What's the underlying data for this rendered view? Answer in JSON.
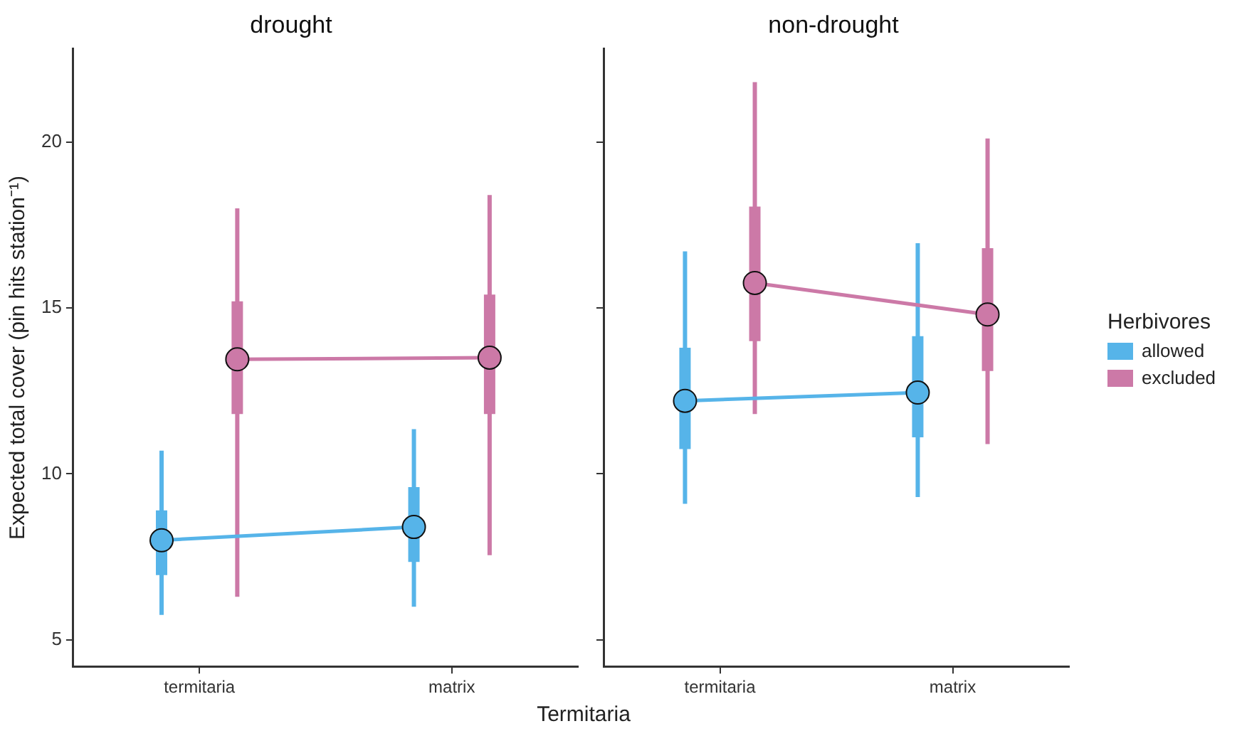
{
  "chart_data": [
    {
      "type": "box",
      "title": "drought",
      "ylabel": "Expected total cover (pin hits station⁻¹)",
      "xlabel": "Termitaria",
      "categories": [
        "termitaria",
        "matrix"
      ],
      "ylim": [
        4.2,
        22.8
      ],
      "yticks": [
        5,
        10,
        15,
        20
      ],
      "grid": false,
      "legend": false,
      "marker": "circle",
      "series": [
        {
          "color": "#56b4e9",
          "boxes": [
            {
              "low": 5.75,
              "q1": 6.95,
              "median": 8.0,
              "q3": 8.9,
              "high": 10.7
            },
            {
              "low": 6.0,
              "q1": 7.35,
              "median": 8.4,
              "q3": 9.6,
              "high": 11.35
            }
          ]
        },
        {
          "color": "#cc79a7",
          "boxes": [
            {
              "low": 6.3,
              "q1": 11.8,
              "median": 13.45,
              "q3": 15.2,
              "high": 18.0
            },
            {
              "low": 7.55,
              "q1": 11.8,
              "median": 13.5,
              "q3": 15.4,
              "high": 18.4
            }
          ]
        },
        {
          "type": "line",
          "color": "#56b4e9",
          "values": [
            8.0,
            8.4
          ]
        },
        {
          "type": "line",
          "color": "#cc79a7",
          "values": [
            13.45,
            13.5
          ]
        }
      ]
    },
    {
      "type": "box",
      "title": "non-drought",
      "legend_title": "Herbivores",
      "categories": [
        "termitaria",
        "matrix"
      ],
      "ylim": [
        4.2,
        22.8
      ],
      "yticks": [
        5,
        10,
        15,
        20
      ],
      "tick_labels": "x",
      "grid": false,
      "legend": "right",
      "marker": "circle",
      "series": [
        {
          "name": "allowed",
          "color": "#56b4e9",
          "boxes": [
            {
              "low": 9.1,
              "q1": 10.75,
              "median": 12.2,
              "q3": 13.8,
              "high": 16.7
            },
            {
              "low": 9.3,
              "q1": 11.1,
              "median": 12.45,
              "q3": 14.15,
              "high": 16.95
            }
          ]
        },
        {
          "name": "excluded",
          "color": "#cc79a7",
          "boxes": [
            {
              "low": 11.8,
              "q1": 14.0,
              "median": 15.75,
              "q3": 18.05,
              "high": 21.8
            },
            {
              "low": 10.9,
              "q1": 13.1,
              "median": 14.8,
              "q3": 16.8,
              "high": 20.1
            }
          ]
        },
        {
          "type": "line",
          "color": "#56b4e9",
          "values": [
            12.2,
            12.45
          ]
        },
        {
          "type": "line",
          "color": "#cc79a7",
          "values": [
            15.75,
            14.8
          ]
        }
      ]
    }
  ]
}
